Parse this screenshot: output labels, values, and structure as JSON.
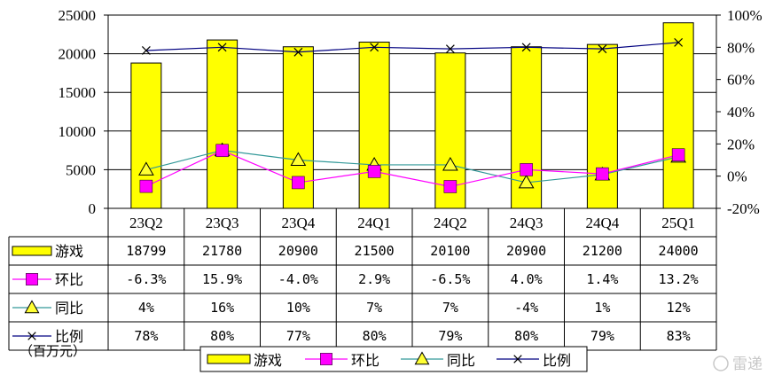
{
  "chart_data": {
    "type": "bar",
    "categories": [
      "23Q2",
      "23Q3",
      "23Q4",
      "24Q1",
      "24Q2",
      "24Q3",
      "24Q4",
      "25Q1"
    ],
    "unit_label": "（百万元）",
    "y_left": {
      "ylim": [
        0,
        25000
      ],
      "ticks": [
        "0",
        "5000",
        "10000",
        "15000",
        "20000",
        "25000"
      ]
    },
    "y_right": {
      "ylim": [
        -20,
        100
      ],
      "ticks": [
        "-20%",
        "0%",
        "20%",
        "40%",
        "60%",
        "80%",
        "100%"
      ]
    },
    "series": [
      {
        "name": "游戏",
        "type": "bar",
        "axis": "left",
        "color": "#ffff00",
        "values": [
          18799,
          21780,
          20900,
          21500,
          20100,
          20900,
          21200,
          24000
        ],
        "labels": [
          "18799",
          "21780",
          "20900",
          "21500",
          "20100",
          "20900",
          "21200",
          "24000"
        ]
      },
      {
        "name": "环比",
        "type": "line",
        "axis": "right",
        "color": "#ff00ff",
        "marker": "square",
        "values": [
          -6.3,
          15.9,
          -4.0,
          2.9,
          -6.5,
          4.0,
          1.4,
          13.2
        ],
        "labels": [
          "-6.3%",
          "15.9%",
          "-4.0%",
          "2.9%",
          "-6.5%",
          "4.0%",
          "1.4%",
          "13.2%"
        ]
      },
      {
        "name": "同比",
        "type": "line",
        "axis": "right",
        "color": "#339999",
        "marker": "triangle",
        "values": [
          4,
          16,
          10,
          7,
          7,
          -4,
          1,
          12
        ],
        "labels": [
          "4%",
          "16%",
          "10%",
          "7%",
          "7%",
          "-4%",
          "1%",
          "12%"
        ]
      },
      {
        "name": "比例",
        "type": "line",
        "axis": "right",
        "color": "#000080",
        "marker": "x",
        "values": [
          78,
          80,
          77,
          80,
          79,
          80,
          79,
          83
        ],
        "labels": [
          "78%",
          "80%",
          "77%",
          "80%",
          "79%",
          "80%",
          "79%",
          "83%"
        ]
      }
    ],
    "legend": {
      "placement": "bottom",
      "entries": [
        "游戏",
        "环比",
        "同比",
        "比例"
      ]
    },
    "watermark": "雷递"
  }
}
